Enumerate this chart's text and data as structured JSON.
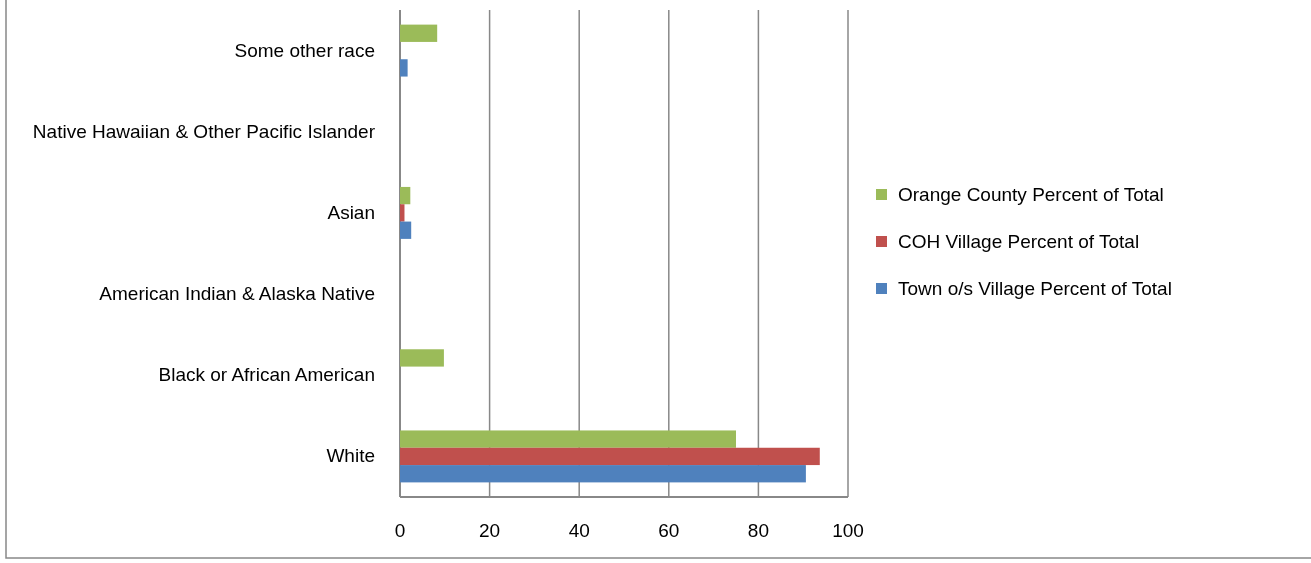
{
  "chart_data": {
    "type": "bar",
    "orientation": "horizontal",
    "categories": [
      "Some other race",
      "Native Hawaiian & Other Pacific Islander",
      "Asian",
      "American Indian & Alaska Native",
      "Black or African American",
      "White"
    ],
    "series": [
      {
        "name": "Orange County Percent of Total",
        "color": "#9bbb59",
        "values": [
          8.3,
          null,
          2.3,
          null,
          9.8,
          75
        ]
      },
      {
        "name": "COH Village Percent of Total",
        "color": "#c0504d",
        "values": [
          null,
          null,
          1.0,
          null,
          null,
          93.7
        ]
      },
      {
        "name": "Town o/s Village Percent of Total",
        "color": "#4f81bd",
        "values": [
          1.7,
          null,
          2.5,
          null,
          null,
          90.6
        ]
      }
    ],
    "xlim": [
      0,
      100
    ],
    "xticks": [
      0,
      20,
      40,
      60,
      80,
      100
    ],
    "grid": "x",
    "legend": "right"
  }
}
